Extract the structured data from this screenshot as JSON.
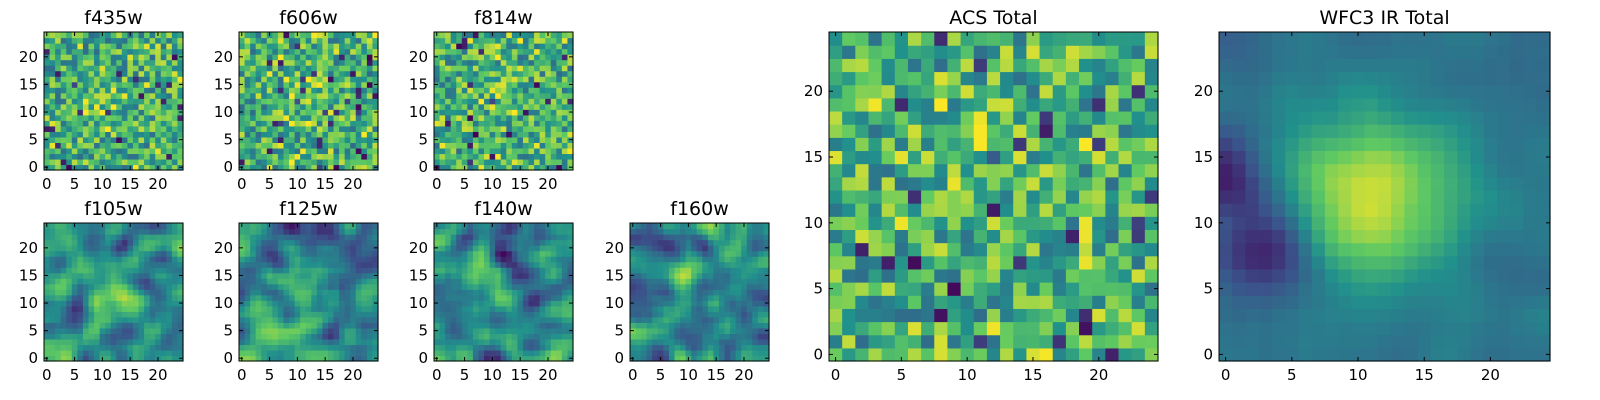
{
  "figure": {
    "colormap": [
      "#440154",
      "#3b528b",
      "#21918c",
      "#5ec962",
      "#fde725"
    ]
  },
  "chart_data": [
    {
      "type": "heatmap",
      "title": "f435w",
      "grid": false,
      "xlim": [
        0,
        24
      ],
      "ylim": [
        0,
        24
      ],
      "x_ticks": [
        0,
        5,
        10,
        15,
        20
      ],
      "y_ticks": [
        0,
        5,
        10,
        15,
        20
      ],
      "hotspot": [
        10,
        12
      ],
      "texture": "noise-fine"
    },
    {
      "type": "heatmap",
      "title": "f606w",
      "grid": false,
      "xlim": [
        0,
        24
      ],
      "ylim": [
        0,
        24
      ],
      "x_ticks": [
        0,
        5,
        10,
        15,
        20
      ],
      "y_ticks": [
        0,
        5,
        10,
        15,
        20
      ],
      "hotspot": [
        12,
        12
      ],
      "texture": "noise-fine"
    },
    {
      "type": "heatmap",
      "title": "f814w",
      "grid": false,
      "xlim": [
        0,
        24
      ],
      "ylim": [
        0,
        24
      ],
      "x_ticks": [
        0,
        5,
        10,
        15,
        20
      ],
      "y_ticks": [
        0,
        5,
        10,
        15,
        20
      ],
      "hotspot": [
        11,
        14
      ],
      "texture": "noise-fine"
    },
    {
      "type": "heatmap",
      "title": "f105w",
      "grid": false,
      "xlim": [
        0,
        24
      ],
      "ylim": [
        0,
        24
      ],
      "x_ticks": [
        0,
        5,
        10,
        15,
        20
      ],
      "y_ticks": [
        0,
        5,
        10,
        15,
        20
      ],
      "hotspot": [
        10,
        13
      ],
      "texture": "smooth"
    },
    {
      "type": "heatmap",
      "title": "f125w",
      "grid": false,
      "xlim": [
        0,
        24
      ],
      "ylim": [
        0,
        24
      ],
      "x_ticks": [
        0,
        5,
        10,
        15,
        20
      ],
      "y_ticks": [
        0,
        5,
        10,
        15,
        20
      ],
      "hotspot": [
        11,
        12
      ],
      "texture": "smooth"
    },
    {
      "type": "heatmap",
      "title": "f140w",
      "grid": false,
      "xlim": [
        0,
        24
      ],
      "ylim": [
        0,
        24
      ],
      "x_ticks": [
        0,
        5,
        10,
        15,
        20
      ],
      "y_ticks": [
        0,
        5,
        10,
        15,
        20
      ],
      "hotspot": [
        11,
        12
      ],
      "texture": "smooth"
    },
    {
      "type": "heatmap",
      "title": "f160w",
      "grid": false,
      "xlim": [
        0,
        24
      ],
      "ylim": [
        0,
        24
      ],
      "x_ticks": [
        0,
        5,
        10,
        15,
        20
      ],
      "y_ticks": [
        0,
        5,
        10,
        15,
        20
      ],
      "hotspot": [
        11,
        12
      ],
      "texture": "smooth"
    },
    {
      "type": "heatmap",
      "title": "ACS Total",
      "grid": false,
      "xlim": [
        0,
        24
      ],
      "ylim": [
        0,
        24
      ],
      "x_ticks": [
        0,
        5,
        10,
        15,
        20
      ],
      "y_ticks": [
        0,
        5,
        10,
        15,
        20
      ],
      "hotspot": [
        11,
        15
      ],
      "texture": "noise-coarse"
    },
    {
      "type": "heatmap",
      "title": "WFC3 IR Total",
      "grid": false,
      "xlim": [
        0,
        24
      ],
      "ylim": [
        0,
        24
      ],
      "x_ticks": [
        0,
        5,
        10,
        15,
        20
      ],
      "y_ticks": [
        0,
        5,
        10,
        15,
        20
      ],
      "hotspot": [
        11,
        12
      ],
      "texture": "source"
    }
  ]
}
